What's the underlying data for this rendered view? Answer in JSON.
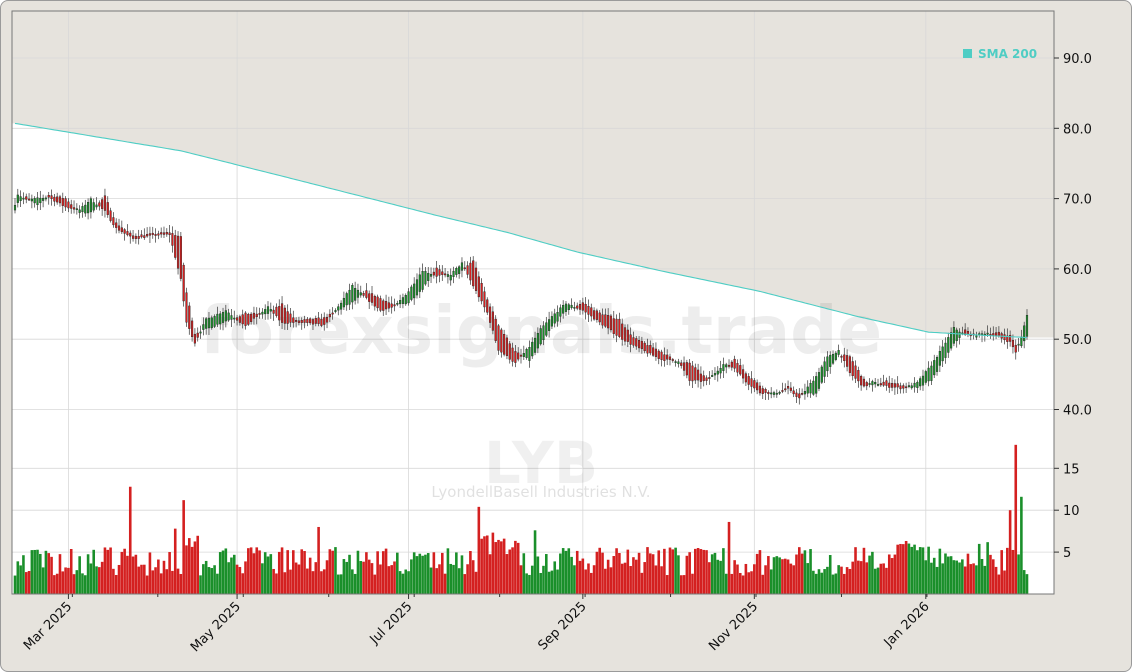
{
  "chart_data": {
    "type": "candlestick",
    "symbol": "LYB",
    "company": "LyondellBasell Industries N.V.",
    "watermark": "forexsignals.trade",
    "legend": [
      {
        "name": "SMA 200",
        "color": "#4ecdc4"
      }
    ],
    "price_axis": {
      "ticks": [
        "40.0",
        "50.0",
        "60.0",
        "70.0",
        "80.0",
        "90.0"
      ],
      "ylim": [
        35.5,
        96.5
      ]
    },
    "volume_axis": {
      "ticks": [
        "5",
        "10",
        "15"
      ],
      "ylim": [
        0,
        18.5
      ]
    },
    "x_labels": [
      {
        "label": "Mar 2025",
        "day": 19
      },
      {
        "label": "May 2025",
        "day": 79
      },
      {
        "label": "Jul 2025",
        "day": 140
      },
      {
        "label": "Sep 2025",
        "day": 202
      },
      {
        "label": "Nov 2025",
        "day": 263
      },
      {
        "label": "Jan 2026",
        "day": 324
      }
    ],
    "sma_200": [
      [
        0,
        80.7
      ],
      [
        59,
        76.8
      ],
      [
        95,
        73.2
      ],
      [
        150,
        67.6
      ],
      [
        175,
        65.2
      ],
      [
        200,
        62.4
      ],
      [
        230,
        59.7
      ],
      [
        265,
        56.8
      ],
      [
        300,
        53.2
      ],
      [
        325,
        51.0
      ],
      [
        347,
        50.5
      ],
      [
        362,
        50.2
      ]
    ],
    "ohlc_anchors": [
      [
        0,
        68.5,
        69.2
      ],
      [
        1,
        69.5,
        70.6
      ],
      [
        4,
        70.2,
        69.8
      ],
      [
        8,
        69.0,
        70.0
      ],
      [
        12,
        70.5,
        70.2
      ],
      [
        18,
        70.0,
        68.8
      ],
      [
        23,
        68.0,
        68.4
      ],
      [
        27,
        68.0,
        69.9
      ],
      [
        32,
        70.3,
        68.2
      ],
      [
        36,
        66.5,
        65.8
      ],
      [
        42,
        64.7,
        64.3
      ],
      [
        50,
        65.0,
        64.8
      ],
      [
        55,
        65.2,
        64.9
      ],
      [
        59,
        64.5,
        58.5
      ],
      [
        61,
        56.6,
        52.4
      ],
      [
        64,
        50.8,
        49.5
      ],
      [
        68,
        51.4,
        52.8
      ],
      [
        75,
        52.6,
        54.1
      ],
      [
        82,
        53.6,
        51.8
      ],
      [
        90,
        53.6,
        54.6
      ],
      [
        95,
        55.0,
        52.3
      ],
      [
        100,
        52.6,
        52.4
      ],
      [
        110,
        53.0,
        52.0
      ],
      [
        115,
        54.1,
        54.6
      ],
      [
        120,
        55.2,
        57.6
      ],
      [
        125,
        56.8,
        55.8
      ],
      [
        130,
        55.8,
        54.1
      ],
      [
        135,
        54.8,
        54.6
      ],
      [
        140,
        55.2,
        56.8
      ],
      [
        145,
        57.2,
        59.8
      ],
      [
        150,
        60.2,
        59.0
      ],
      [
        155,
        58.5,
        59.2
      ],
      [
        159,
        59.7,
        60.8
      ],
      [
        163,
        61.2,
        57.6
      ],
      [
        168,
        55.6,
        53.8
      ],
      [
        172,
        52.0,
        48.5
      ],
      [
        178,
        48.2,
        46.6
      ],
      [
        183,
        47.0,
        48.9
      ],
      [
        187,
        49.2,
        51.4
      ],
      [
        191,
        51.8,
        53.2
      ],
      [
        196,
        54.0,
        55.1
      ],
      [
        202,
        55.2,
        54.1
      ],
      [
        208,
        53.7,
        52.4
      ],
      [
        215,
        52.8,
        50.3
      ],
      [
        220,
        50.2,
        49.1
      ],
      [
        230,
        48.2,
        47.1
      ],
      [
        236,
        46.6,
        46.9
      ],
      [
        240,
        46.6,
        44.1
      ],
      [
        246,
        44.4,
        44.0
      ],
      [
        252,
        45.5,
        46.4
      ],
      [
        256,
        47.2,
        45.9
      ],
      [
        260,
        45.2,
        44.0
      ],
      [
        265,
        43.4,
        42.4
      ],
      [
        270,
        42.0,
        42.3
      ],
      [
        275,
        43.2,
        42.9
      ],
      [
        279,
        42.2,
        41.6
      ],
      [
        285,
        42.3,
        44.7
      ],
      [
        289,
        45.4,
        47.4
      ],
      [
        293,
        47.8,
        48.4
      ],
      [
        297,
        47.5,
        45.2
      ],
      [
        302,
        44.2,
        43.2
      ],
      [
        305,
        43.4,
        43.9
      ],
      [
        310,
        44.0,
        43.3
      ],
      [
        316,
        43.4,
        43.0
      ],
      [
        321,
        43.0,
        43.8
      ],
      [
        326,
        44.2,
        46.3
      ],
      [
        330,
        46.8,
        48.8
      ],
      [
        334,
        49.3,
        51.6
      ],
      [
        338,
        51.3,
        50.6
      ],
      [
        342,
        50.4,
        50.6
      ],
      [
        346,
        50.8,
        50.9
      ],
      [
        350,
        50.9,
        50.3
      ],
      [
        354,
        50.5,
        49.6
      ],
      [
        356,
        49.2,
        48.2
      ],
      [
        358,
        49.0,
        50.3
      ],
      [
        360,
        50.5,
        53.5
      ]
    ],
    "volume_spikes": [
      [
        41,
        12.8
      ],
      [
        57,
        7.8
      ],
      [
        60,
        11.2
      ],
      [
        108,
        8.0
      ],
      [
        165,
        10.4
      ],
      [
        185,
        7.6
      ],
      [
        254,
        8.6
      ],
      [
        305,
        9.2
      ],
      [
        320,
        7.8
      ],
      [
        332,
        9.8
      ],
      [
        354,
        10.0
      ],
      [
        356,
        17.8
      ],
      [
        358,
        11.6
      ]
    ],
    "last_volumes": [
      [
        352,
        5.0
      ],
      [
        353,
        5.0
      ],
      [
        354,
        10.0
      ],
      [
        355,
        10.0
      ],
      [
        356,
        17.8
      ],
      [
        357,
        10.0
      ],
      [
        358,
        11.6
      ]
    ],
    "total_days": 361
  },
  "colors": {
    "up": "#1a8f2a",
    "down": "#d42020",
    "sma": "#4ecdc4",
    "background": "#e6e3dd",
    "plot": "#ffffff",
    "grid": "#d8d8d8"
  }
}
